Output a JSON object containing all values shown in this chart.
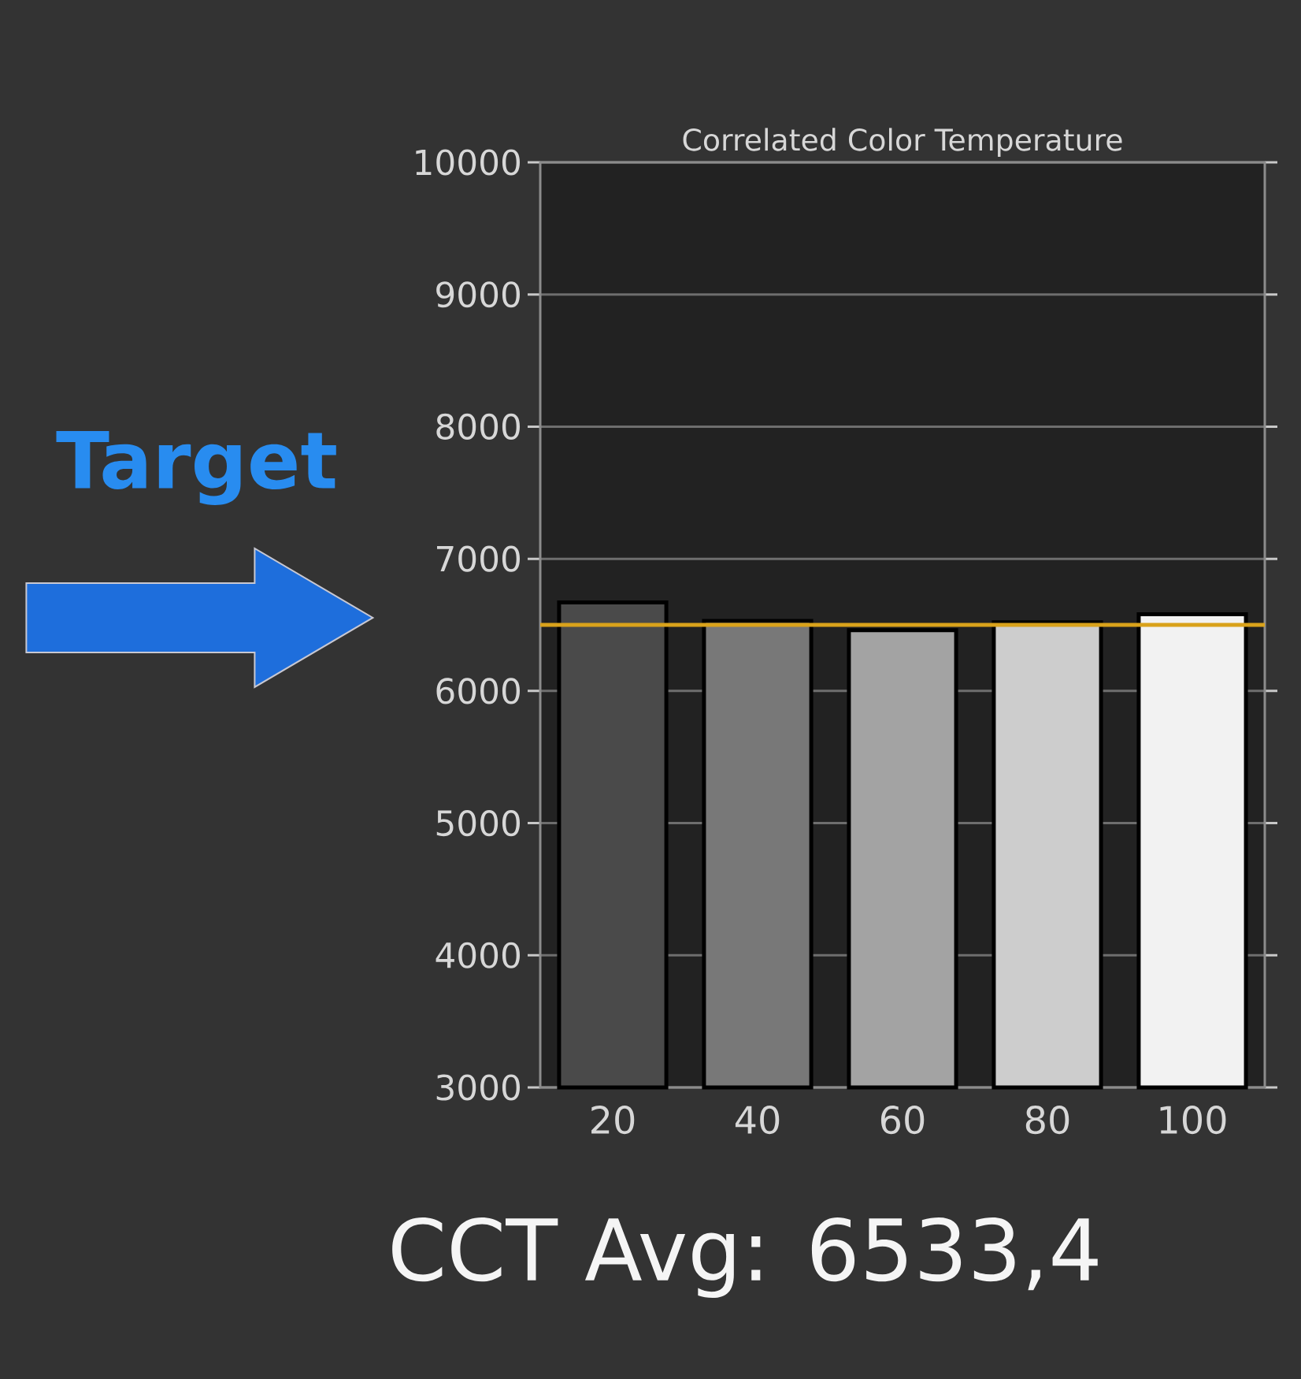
{
  "chart_data": {
    "type": "bar",
    "title": "Correlated Color Temperature",
    "categories": [
      "20",
      "40",
      "60",
      "80",
      "100"
    ],
    "values": [
      6670,
      6530,
      6460,
      6520,
      6580
    ],
    "colors": [
      "#4a4a4a",
      "#787878",
      "#a3a3a3",
      "#cdcdcd",
      "#f2f2f2"
    ],
    "ylim": [
      3000,
      10000
    ],
    "yticks": [
      3000,
      4000,
      5000,
      6000,
      7000,
      8000,
      9000,
      10000
    ],
    "grid": "y",
    "ref_lines": [
      {
        "axis": "y",
        "value": 6500,
        "color": "#d9a21b"
      }
    ],
    "annotations": [
      "Target",
      "CCT Avg: 6533,4"
    ]
  }
}
